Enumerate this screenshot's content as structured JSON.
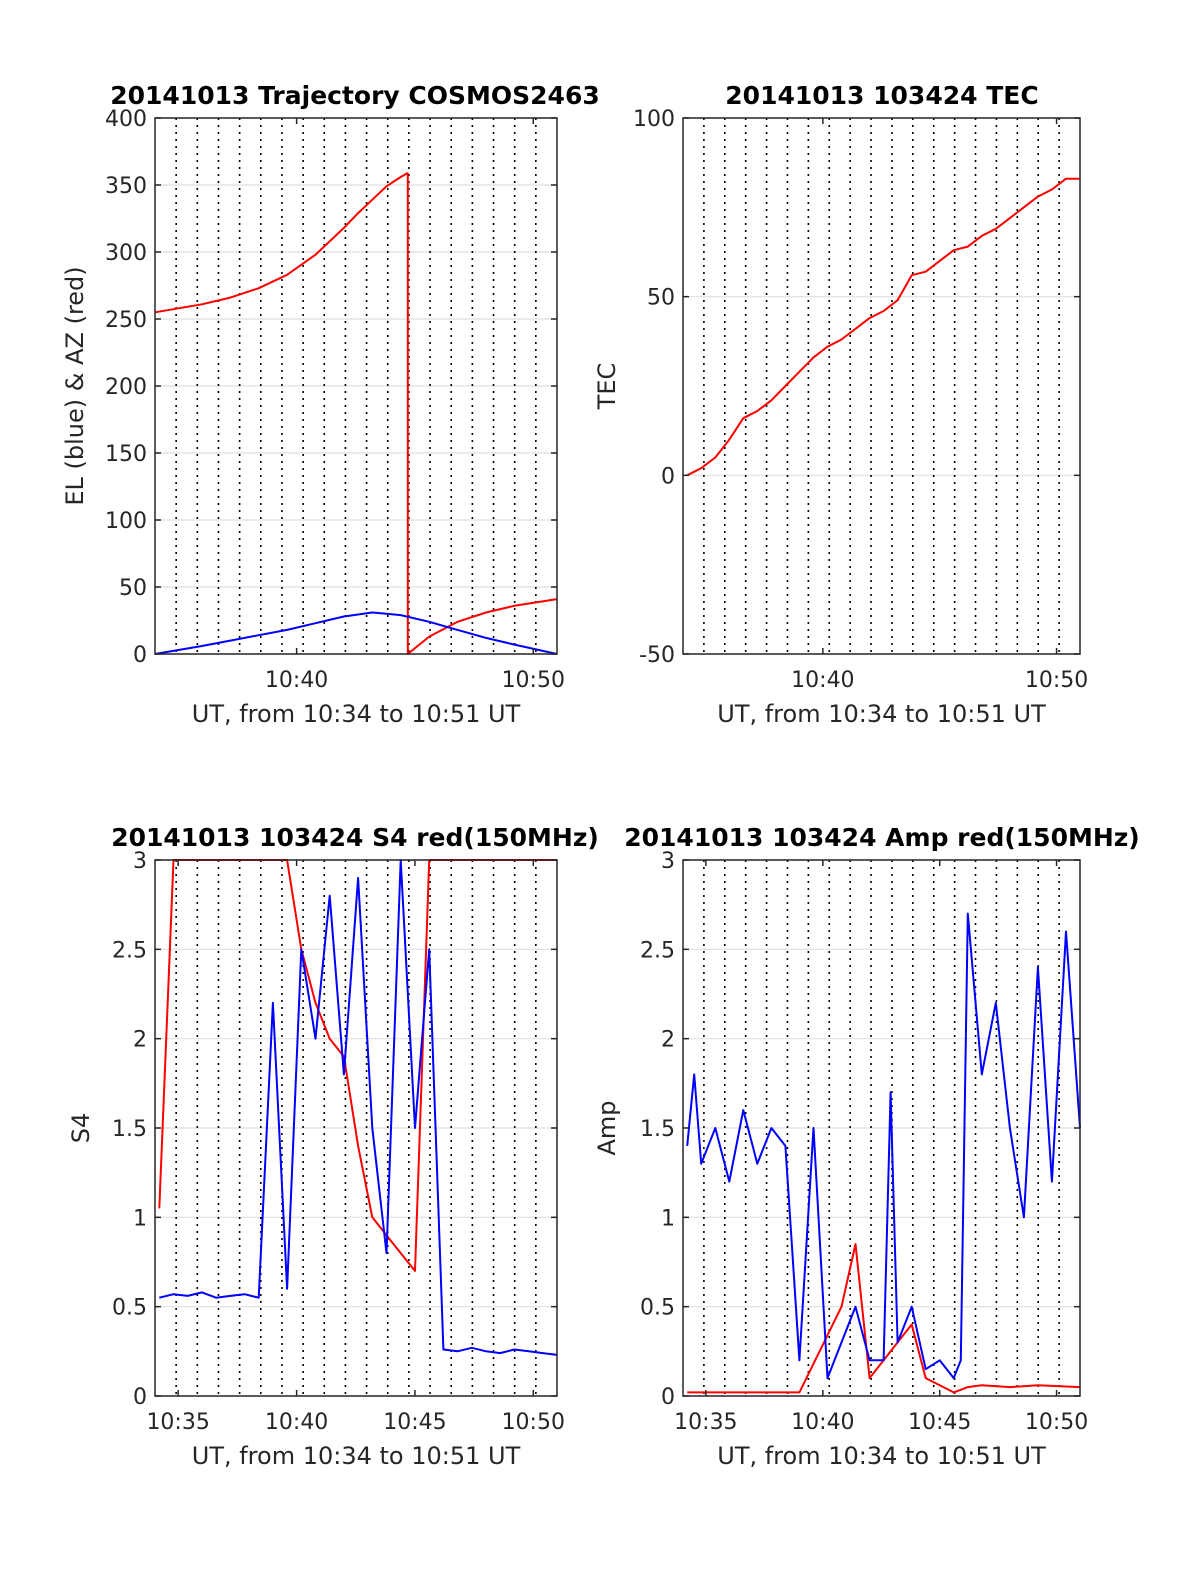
{
  "colors": {
    "el": "#0000ff",
    "az": "#ff0000",
    "tec": "#ff0000",
    "s4_red": "#ff0000",
    "s4_blue": "#0000ff",
    "amp_red": "#ff0000",
    "amp_blue": "#0000ff"
  },
  "chart_data": [
    {
      "type": "line",
      "title": "20141013 Trajectory COSMOS2463",
      "xlabel": "UT, from 10:34 to 10:51 UT",
      "ylabel": "EL (blue) & AZ (red)",
      "xlim": [
        10.567,
        10.85
      ],
      "ylim": [
        0,
        400
      ],
      "xticks": [
        {
          "value": 10.6667,
          "label": "10:40"
        },
        {
          "value": 10.8333,
          "label": "10:50"
        }
      ],
      "yticks": [
        0,
        50,
        100,
        150,
        200,
        250,
        300,
        350,
        400
      ],
      "grid": true,
      "series": [
        {
          "x": [
            10.567,
            10.6,
            10.62,
            10.64,
            10.66,
            10.68,
            10.7,
            10.71,
            10.72,
            10.73,
            10.74,
            10.745
          ],
          "y": [
            255,
            261,
            266,
            273,
            283,
            298,
            318,
            329,
            339,
            349,
            356,
            359
          ]
        },
        {
          "x": [
            10.745,
            10.745,
            10.76,
            10.78,
            10.8,
            10.82,
            10.85
          ],
          "y": [
            359,
            0,
            13,
            24,
            31,
            36,
            41
          ]
        },
        {
          "x": [
            10.567,
            10.6,
            10.62,
            10.64,
            10.66,
            10.68,
            10.7,
            10.72,
            10.74,
            10.76,
            10.78,
            10.8,
            10.82,
            10.85
          ],
          "y": [
            0,
            6,
            10,
            14,
            18,
            23,
            28,
            31,
            29,
            24,
            18,
            12,
            7,
            0
          ]
        }
      ]
    },
    {
      "type": "line",
      "title": "20141013 103424 TEC",
      "xlabel": "UT, from 10:34 to 10:51 UT",
      "ylabel": "TEC",
      "xlim": [
        10.567,
        10.85
      ],
      "ylim": [
        -50,
        100
      ],
      "xticks": [
        {
          "value": 10.6667,
          "label": "10:40"
        },
        {
          "value": 10.8333,
          "label": "10:50"
        }
      ],
      "yticks": [
        -50,
        0,
        50,
        100
      ],
      "grid": true,
      "series": [
        {
          "x": [
            10.57,
            10.58,
            10.59,
            10.6,
            10.61,
            10.62,
            10.63,
            10.64,
            10.65,
            10.66,
            10.67,
            10.68,
            10.69,
            10.7,
            10.71,
            10.72,
            10.73,
            10.74,
            10.75,
            10.76,
            10.77,
            10.78,
            10.79,
            10.8,
            10.81,
            10.82,
            10.83,
            10.84,
            10.85
          ],
          "y": [
            0,
            2,
            5,
            10,
            16,
            18,
            21,
            25,
            29,
            33,
            36,
            38,
            41,
            44,
            46,
            49,
            56,
            57,
            60,
            63,
            64,
            67,
            69,
            72,
            75,
            78,
            80,
            83,
            83
          ]
        }
      ]
    },
    {
      "type": "line",
      "title": "20141013 103424 S4 red(150MHz)",
      "xlabel": "UT, from 10:34 to 10:51 UT",
      "ylabel": "S4",
      "xlim": [
        10.567,
        10.85
      ],
      "ylim": [
        0,
        3
      ],
      "xticks": [
        {
          "value": 10.5833,
          "label": "10:35"
        },
        {
          "value": 10.6667,
          "label": "10:40"
        },
        {
          "value": 10.75,
          "label": "10:45"
        },
        {
          "value": 10.8333,
          "label": "10:50"
        }
      ],
      "yticks": [
        0,
        0.5,
        1,
        1.5,
        2,
        2.5,
        3
      ],
      "grid": true,
      "series": [
        {
          "x": [
            10.57,
            10.58,
            10.6,
            10.62,
            10.64,
            10.66,
            10.67,
            10.68,
            10.69,
            10.7,
            10.71,
            10.72,
            10.73,
            10.74,
            10.75,
            10.76,
            10.78,
            10.8,
            10.82,
            10.84,
            10.85
          ],
          "y": [
            1.05,
            3,
            3,
            3,
            3,
            3,
            2.5,
            2.2,
            2.0,
            1.9,
            1.4,
            1.0,
            0.9,
            0.8,
            0.7,
            3,
            3,
            3,
            3,
            3,
            3
          ]
        },
        {
          "x": [
            10.57,
            10.58,
            10.59,
            10.6,
            10.61,
            10.62,
            10.63,
            10.64,
            10.65,
            10.66,
            10.67,
            10.68,
            10.69,
            10.7,
            10.71,
            10.72,
            10.73,
            10.74,
            10.75,
            10.76,
            10.77,
            10.78,
            10.79,
            10.8,
            10.81,
            10.82,
            10.83,
            10.84,
            10.85
          ],
          "y": [
            0.55,
            0.57,
            0.56,
            0.58,
            0.55,
            0.56,
            0.57,
            0.55,
            2.2,
            0.6,
            2.5,
            2.0,
            2.8,
            1.8,
            2.9,
            1.5,
            0.8,
            3.0,
            1.5,
            2.5,
            0.26,
            0.25,
            0.27,
            0.25,
            0.24,
            0.26,
            0.25,
            0.24,
            0.23
          ]
        }
      ]
    },
    {
      "type": "line",
      "title": "20141013 103424 Amp red(150MHz)",
      "xlabel": "UT, from 10:34 to 10:51 UT",
      "ylabel": "Amp",
      "xlim": [
        10.567,
        10.85
      ],
      "ylim": [
        0,
        3
      ],
      "xticks": [
        {
          "value": 10.5833,
          "label": "10:35"
        },
        {
          "value": 10.6667,
          "label": "10:40"
        },
        {
          "value": 10.75,
          "label": "10:45"
        },
        {
          "value": 10.8333,
          "label": "10:50"
        }
      ],
      "yticks": [
        0,
        0.5,
        1,
        1.5,
        2,
        2.5,
        3
      ],
      "grid": true,
      "series": [
        {
          "x": [
            10.57,
            10.6,
            10.65,
            10.68,
            10.69,
            10.7,
            10.72,
            10.73,
            10.74,
            10.76,
            10.77,
            10.78,
            10.8,
            10.82,
            10.85
          ],
          "y": [
            0.02,
            0.02,
            0.02,
            0.5,
            0.85,
            0.1,
            0.3,
            0.4,
            0.1,
            0.02,
            0.05,
            0.06,
            0.05,
            0.06,
            0.05
          ]
        },
        {
          "x": [
            10.57,
            10.575,
            10.58,
            10.59,
            10.6,
            10.61,
            10.62,
            10.63,
            10.64,
            10.65,
            10.66,
            10.67,
            10.68,
            10.69,
            10.7,
            10.71,
            10.715,
            10.72,
            10.73,
            10.74,
            10.75,
            10.76,
            10.765,
            10.77,
            10.78,
            10.79,
            10.8,
            10.81,
            10.82,
            10.83,
            10.84,
            10.85
          ],
          "y": [
            1.4,
            1.8,
            1.3,
            1.5,
            1.2,
            1.6,
            1.3,
            1.5,
            1.4,
            0.2,
            1.5,
            0.1,
            0.3,
            0.5,
            0.2,
            0.2,
            1.7,
            0.3,
            0.5,
            0.15,
            0.2,
            0.1,
            0.2,
            2.7,
            1.8,
            2.2,
            1.5,
            1.0,
            2.4,
            1.2,
            2.6,
            1.5
          ]
        }
      ]
    }
  ]
}
